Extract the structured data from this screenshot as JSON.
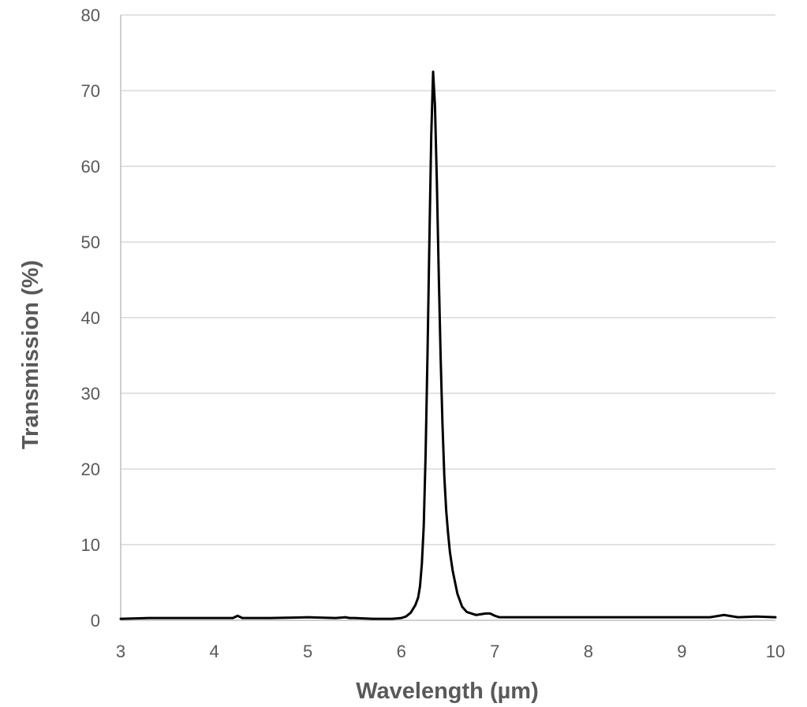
{
  "chart_data": {
    "type": "line",
    "title": "",
    "xlabel": "Wavelength (µm)",
    "ylabel": "Transmission (%)",
    "xlim": [
      3,
      10
    ],
    "ylim": [
      0,
      80
    ],
    "x_ticks": [
      "3",
      "4",
      "5",
      "6",
      "7",
      "8",
      "9",
      "10"
    ],
    "y_ticks": [
      "0",
      "10",
      "20",
      "30",
      "40",
      "50",
      "60",
      "70",
      "80"
    ],
    "grid": "horizontal",
    "legend": "none",
    "line_color": "#000000",
    "series": [
      {
        "x": [
          3.0,
          3.3,
          3.6,
          4.0,
          4.2,
          4.25,
          4.3,
          4.6,
          5.0,
          5.3,
          5.4,
          5.45,
          5.5,
          5.7,
          5.9,
          6.0,
          6.05,
          6.1,
          6.15,
          6.18,
          6.2,
          6.22,
          6.24,
          6.26,
          6.28,
          6.3,
          6.32,
          6.34,
          6.36,
          6.38,
          6.4,
          6.42,
          6.44,
          6.46,
          6.48,
          6.5,
          6.52,
          6.55,
          6.6,
          6.65,
          6.7,
          6.8,
          6.9,
          6.95,
          7.0,
          7.05,
          7.5,
          8.0,
          8.5,
          9.0,
          9.3,
          9.45,
          9.6,
          9.8,
          10.0
        ],
        "y": [
          0.2,
          0.3,
          0.3,
          0.3,
          0.3,
          0.6,
          0.3,
          0.3,
          0.4,
          0.3,
          0.4,
          0.3,
          0.3,
          0.2,
          0.2,
          0.3,
          0.5,
          1.0,
          2.0,
          3.0,
          4.5,
          7.5,
          12.5,
          22.0,
          35.0,
          50.0,
          64.0,
          72.5,
          68.0,
          58.0,
          46.0,
          35.0,
          26.0,
          19.0,
          14.5,
          11.5,
          9.0,
          6.5,
          3.5,
          1.8,
          1.1,
          0.7,
          0.9,
          0.9,
          0.6,
          0.4,
          0.4,
          0.4,
          0.4,
          0.4,
          0.4,
          0.7,
          0.4,
          0.5,
          0.4
        ]
      }
    ]
  }
}
